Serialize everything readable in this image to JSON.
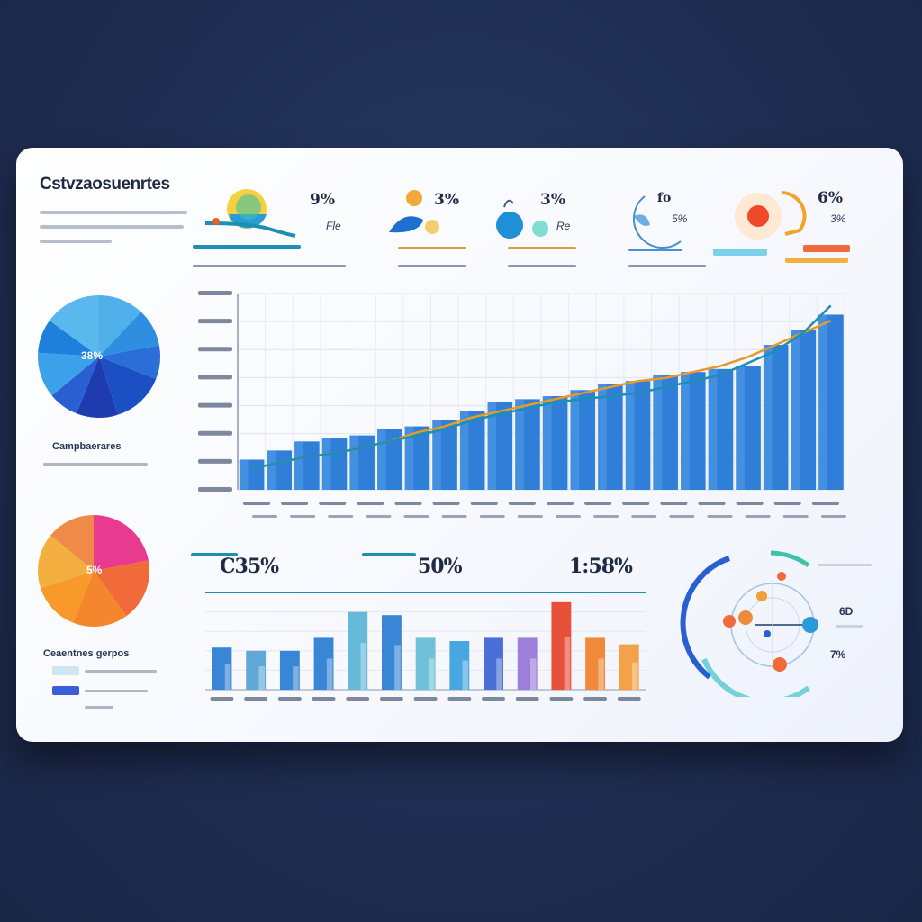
{
  "dashboard": {
    "title": "Cstvzaosuenrtes"
  },
  "kpis": [
    {
      "value": "9%",
      "sub": "Fle"
    },
    {
      "value": "3%",
      "sub": ""
    },
    {
      "value": "3%",
      "sub": "Re"
    },
    {
      "value": "fo",
      "sub": "5%"
    },
    {
      "value": "6%",
      "sub": "3%"
    }
  ],
  "pie_top": {
    "label": "38%"
  },
  "pie_top_legend": {
    "title": "Campbaerares"
  },
  "pie_bottom": {
    "label": "5%"
  },
  "pie_bottom_legend": {
    "title": "Ceaentnes gerpos"
  },
  "mid_stats": [
    {
      "value": "C35%"
    },
    {
      "value": "50%"
    },
    {
      "value": "1:58%"
    }
  ],
  "radial": {
    "values": [
      "6D",
      "7%"
    ]
  },
  "colors": {
    "bar_main": "#2f7fd9",
    "line_teal": "#1c8fb3",
    "line_orange": "#e59a2a",
    "background": "#1f2d52"
  },
  "chart_data": [
    {
      "type": "bar",
      "series": [
        {
          "values": [
            1,
            1.3,
            1.6,
            1.7,
            1.8,
            2.0,
            2.1,
            2.3,
            2.6,
            2.9,
            3.0,
            3.1,
            3.3,
            3.5,
            3.6,
            3.8,
            3.9,
            4.0,
            4.1,
            4.8,
            5.3,
            5.8
          ]
        },
        {
          "values": [
            0.7,
            0.9,
            1.1,
            1.2,
            1.4,
            1.6,
            1.8,
            2.0,
            2.3,
            2.5,
            2.7,
            2.9,
            3.0,
            3.1,
            3.2,
            3.4,
            3.6,
            3.8,
            4.2,
            4.6,
            5.2,
            6.1
          ]
        },
        {
          "values": [
            0.7,
            0.9,
            1.1,
            1.2,
            1.4,
            1.6,
            1.9,
            2.1,
            2.4,
            2.6,
            2.8,
            3.0,
            3.2,
            3.4,
            3.6,
            3.7,
            3.9,
            4.1,
            4.4,
            4.8,
            5.2,
            5.6
          ]
        }
      ],
      "ylim": [
        0,
        6.5
      ],
      "grid": true
    },
    {
      "type": "bar",
      "values": [
        1.3,
        1.2,
        1.2,
        1.6,
        2.4,
        2.3,
        1.6,
        1.5,
        1.6,
        1.6,
        2.7,
        1.6,
        1.4
      ],
      "colors": [
        "#3a86d6",
        "#5fa8d8",
        "#3a86d6",
        "#3a86d6",
        "#65b9d9",
        "#3a86d6",
        "#6ec1d9",
        "#48a6e0",
        "#4b6fd6",
        "#9b7fd8",
        "#e8503a",
        "#f08a3a",
        "#f4a24a"
      ],
      "ylim": [
        0,
        3
      ]
    },
    {
      "type": "pie",
      "values": [
        12,
        10,
        9,
        14,
        11,
        8,
        12,
        9,
        15
      ],
      "colors": [
        "#4fb0ea",
        "#2e8fe0",
        "#2a6fd8",
        "#1b4fc4",
        "#1f3bb0",
        "#2a5fd2",
        "#3da0ea",
        "#1e7fdc",
        "#5ab8ee"
      ]
    },
    {
      "type": "pie",
      "values": [
        22,
        18,
        16,
        14,
        16,
        14
      ],
      "colors": [
        "#e83a8e",
        "#f06a3a",
        "#f4862e",
        "#f79a2a",
        "#f3b040",
        "#f08a48"
      ]
    }
  ]
}
